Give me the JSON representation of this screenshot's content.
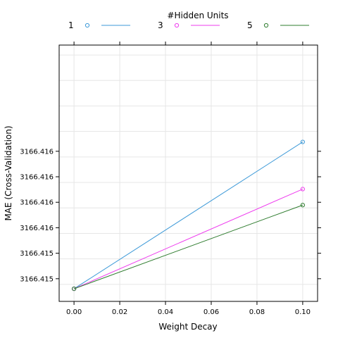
{
  "chart_data": {
    "type": "line",
    "xlabel": "Weight Decay",
    "ylabel": "MAE (Cross-Validation)",
    "legend_title": "#Hidden Units",
    "legend_position": "top",
    "grid": true,
    "xlim": [
      -0.0065,
      0.1065
    ],
    "ylim": [
      3166.41466,
      3166.41647
    ],
    "x_ticks": [
      0.0,
      0.02,
      0.04,
      0.06,
      0.08,
      0.1
    ],
    "x_tick_labels": [
      "0.00",
      "0.02",
      "0.04",
      "0.06",
      "0.08",
      "0.10"
    ],
    "y_ticks": [
      3166.41478,
      3166.41496,
      3166.41514,
      3166.41532,
      3166.4155,
      3166.41568,
      3166.41586,
      3166.41604,
      3166.41622,
      3166.4164
    ],
    "y_tick_labels": [
      "3166.415",
      "3166.415",
      "3166.416",
      "3166.416",
      "3166.416",
      "3166.416"
    ],
    "y_labeled_ticks": [
      3166.41482,
      3166.415,
      3166.41518,
      3166.41536,
      3166.41554,
      3166.41572
    ],
    "series": [
      {
        "name": "1",
        "color": "#3d9ad8",
        "x": [
          0.0,
          0.1
        ],
        "y": [
          3166.414749,
          3166.415786
        ]
      },
      {
        "name": "3",
        "color": "#ee3cee",
        "x": [
          0.0,
          0.1
        ],
        "y": [
          3166.414749,
          3166.415453
        ]
      },
      {
        "name": "5",
        "color": "#2f7c2f",
        "x": [
          0.0,
          0.1
        ],
        "y": [
          3166.414749,
          3166.41534
        ]
      }
    ]
  }
}
